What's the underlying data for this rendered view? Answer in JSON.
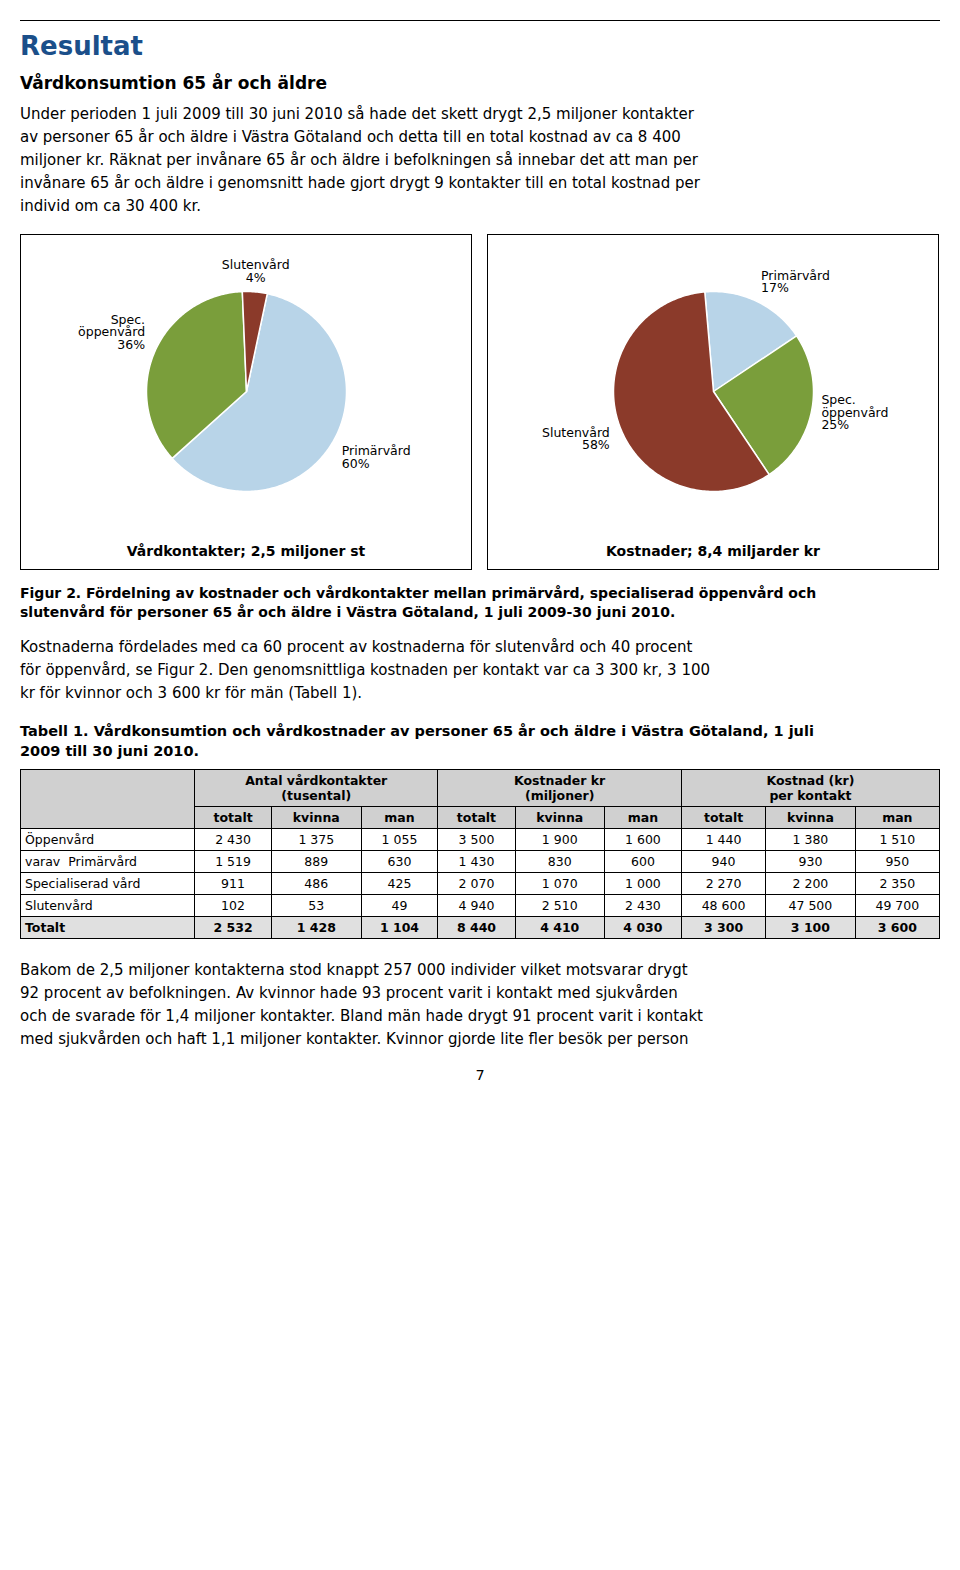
{
  "page": {
    "heading": "Resultat",
    "heading_color": "#1b4f8a",
    "section_title": "Vårdkonsumtion 65 år och äldre",
    "intro": [
      "Under perioden 1 juli 2009 till 30 juni 2010 så hade det skett drygt 2,5 miljoner kontakter",
      "av personer 65 år och äldre i Västra Götaland och detta till en total kostnad av ca 8 400",
      "miljoner kr. Räknat per invånare 65 år och äldre i befolkningen så innebar det att man per",
      "invånare 65 år och äldre i genomsnitt hade gjort drygt 9 kontakter till en total kostnad per",
      "individ om ca 30 400 kr."
    ],
    "figure_caption": [
      "Figur 2. Fördelning av kostnader och vårdkontakter mellan primärvård, specialiserad öppenvård och",
      "slutenvård för personer 65 år och äldre i Västra Götaland, 1 juli 2009-30 juni 2010."
    ],
    "middle_text": [
      "Kostnaderna fördelades med ca 60 procent av kostnaderna för slutenvård och 40 procent",
      "för öppenvård, se Figur 2. Den genomsnittliga kostnaden per kontakt var ca 3 300 kr, 3 100",
      "kr för kvinnor och 3 600 kr för män (Tabell 1)."
    ],
    "table": {
      "title": [
        "Tabell 1. Vårdkonsumtion och vårdkostnader av personer 65 år och äldre i Västra Götaland, 1 juli",
        "2009 till 30 juni 2010."
      ],
      "column_groups": [
        [
          "Antal vårdkontakter",
          "(tusental)"
        ],
        [
          "Kostnader kr",
          "(miljoner)"
        ],
        [
          "Kostnad (kr)",
          "per kontakt"
        ]
      ],
      "columns": [
        "totalt",
        "kvinna",
        "man",
        "totalt",
        "kvinna",
        "man",
        "totalt",
        "kvinna",
        "man"
      ],
      "rows": [
        {
          "label": "Öppenvård",
          "values": [
            2430,
            1375,
            1055,
            3500,
            1900,
            1600,
            1440,
            1380,
            1510
          ],
          "value_labels": [
            "2 430",
            "1 375",
            "1 055",
            "3 500",
            "1 900",
            "1 600",
            "1 440",
            "1 380",
            "1 510"
          ]
        },
        {
          "label": "varav  Primärvård",
          "values": [
            1519,
            889,
            630,
            1430,
            830,
            600,
            940,
            930,
            950
          ],
          "value_labels": [
            "1 519",
            "889",
            "630",
            "1 430",
            "830",
            "600",
            "940",
            "930",
            "950"
          ]
        },
        {
          "label": "Specialiserad vård",
          "values": [
            911,
            486,
            425,
            2070,
            1070,
            1000,
            2270,
            2200,
            2350
          ],
          "value_labels": [
            "911",
            "486",
            "425",
            "2 070",
            "1 070",
            "1 000",
            "2 270",
            "2 200",
            "2 350"
          ]
        },
        {
          "label": "Slutenvård",
          "values": [
            102,
            53,
            49,
            4940,
            2510,
            2430,
            48600,
            47500,
            49700
          ],
          "value_labels": [
            "102",
            "53",
            "49",
            "4 940",
            "2 510",
            "2 430",
            "48 600",
            "47 500",
            "49 700"
          ]
        },
        {
          "label": "Totalt",
          "values": [
            2532,
            1428,
            1104,
            8440,
            4410,
            4030,
            3300,
            3100,
            3600
          ],
          "value_labels": [
            "2 532",
            "1 428",
            "1 104",
            "8 440",
            "4 410",
            "4 030",
            "3 300",
            "3 100",
            "3 600"
          ]
        }
      ]
    },
    "bottom_text": [
      "Bakom de 2,5 miljoner kontakterna stod knappt 257 000 individer vilket motsvarar drygt",
      "92 procent av befolkningen. Av kvinnor hade 93 procent varit i kontakt med sjukvården",
      "och de svarade för 1,4 miljoner kontakter. Bland män hade drygt 91 procent varit i kontakt",
      "med sjukvården och haft 1,1 miljoner kontakter. Kvinnor gjorde lite fler besök per person"
    ],
    "page_number": 7
  },
  "chart_data": [
    {
      "type": "pie",
      "title": "Vårdkontakter; 2,5 miljoner st",
      "categories": [
        "Primärvård",
        "Spec. öppenvård",
        "Slutenvård"
      ],
      "values": [
        60,
        36,
        4
      ],
      "value_labels": [
        "60%",
        "36%",
        "4%"
      ],
      "colors": [
        "#b8d4e8",
        "#7a9e3b",
        "#8b3a2a"
      ],
      "data_labels": true
    },
    {
      "type": "pie",
      "title": "Kostnader; 8,4 miljarder kr",
      "categories": [
        "Primärvård",
        "Spec. öppenvård",
        "Slutenvård"
      ],
      "values": [
        17,
        25,
        58
      ],
      "value_labels": [
        "17%",
        "25%",
        "58%"
      ],
      "colors": [
        "#b8d4e8",
        "#7a9e3b",
        "#8b3a2a"
      ],
      "data_labels": true
    }
  ]
}
